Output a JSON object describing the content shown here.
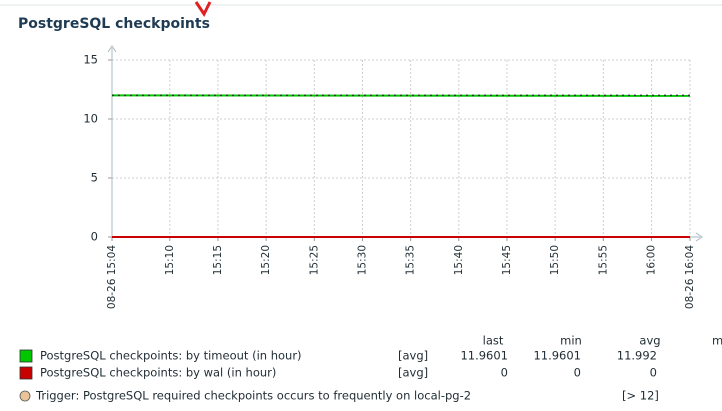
{
  "chart_data": {
    "type": "line",
    "title": "PostgreSQL checkpoints",
    "xlim": [
      904,
      964
    ],
    "ylim": [
      0,
      15
    ],
    "yticks": [
      0,
      5,
      10,
      15
    ],
    "xticks": [
      {
        "value": 904,
        "label": "08-26 15:04",
        "color": "#cc0000"
      },
      {
        "value": 910,
        "label": "15:10"
      },
      {
        "value": 915,
        "label": "15:15"
      },
      {
        "value": 920,
        "label": "15:20"
      },
      {
        "value": 925,
        "label": "15:25"
      },
      {
        "value": 930,
        "label": "15:30"
      },
      {
        "value": 935,
        "label": "15:35"
      },
      {
        "value": 940,
        "label": "15:40"
      },
      {
        "value": 945,
        "label": "15:45"
      },
      {
        "value": 950,
        "label": "15:50"
      },
      {
        "value": 955,
        "label": "15:55"
      },
      {
        "value": 960,
        "label": "16:00",
        "color": "#cc0000"
      },
      {
        "value": 964,
        "label": "08-26 16:04",
        "color": "#cc0000"
      }
    ],
    "grid": true,
    "series": [
      {
        "name": "PostgreSQL checkpoints: by timeout (in hour)",
        "color": "#00c800",
        "x": [
          904,
          964
        ],
        "values": [
          12.0,
          11.96
        ]
      },
      {
        "name": "PostgreSQL checkpoints: by wal (in hour)",
        "color": "#c80000",
        "x": [
          904,
          964
        ],
        "values": [
          0,
          0
        ]
      }
    ],
    "trigger": {
      "name": "Trigger: PostgreSQL required checkpoints occurs to frequently on local-pg-2",
      "threshold": 12,
      "threshold_label": "[> 12]",
      "color": "#ecc398"
    },
    "legend": {
      "headers": [
        "last",
        "min",
        "avg",
        "m"
      ],
      "items": [
        {
          "func": "[avg]",
          "last": 11.9601,
          "min": 11.9601,
          "avg": 11.992
        },
        {
          "func": "[avg]",
          "last": 0,
          "min": 0,
          "avg": 0
        }
      ]
    }
  }
}
